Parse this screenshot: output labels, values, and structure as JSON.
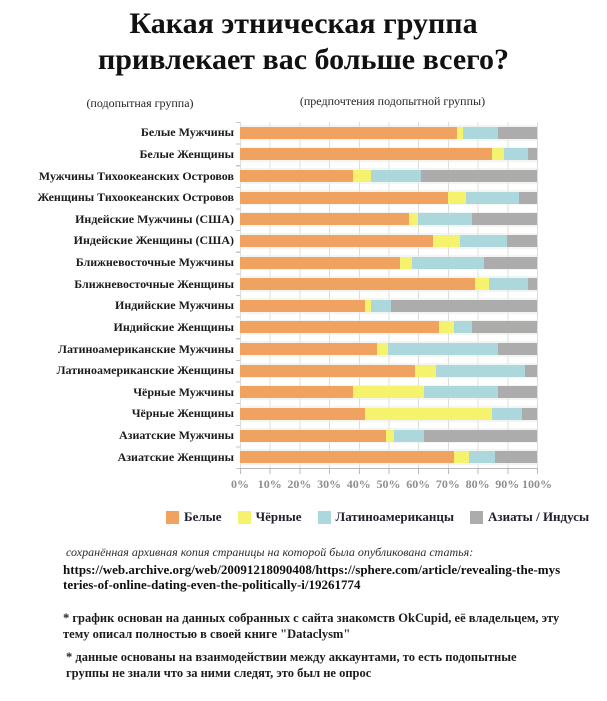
{
  "title": {
    "line1": "Какая этническая группа",
    "line2": "привлекает вас больше всего?"
  },
  "subtitles": {
    "left": "(подопытная группа)",
    "right": "(предпочтения подопытной группы)"
  },
  "chart_data": {
    "type": "bar",
    "stacked": true,
    "orientation": "horizontal",
    "grid": true,
    "xlim": [
      0,
      100
    ],
    "x_ticks": [
      "0%",
      "10%",
      "20%",
      "30%",
      "40%",
      "50%",
      "60%",
      "70%",
      "80%",
      "90%",
      "100%"
    ],
    "categories": [
      "Белые Мужчины",
      "Белые Женщины",
      "Мужчины Тихоокеанских Островов",
      "Женщины Тихоокеанских Островов",
      "Индейские Мужчины (США)",
      "Индейские Женщины (США)",
      "Ближневосточные Мужчины",
      "Ближневосточные Женщины",
      "Индийские Мужчины",
      "Индийские Женщины",
      "Латиноамериканские Мужчины",
      "Латиноамериканские Женщины",
      "Чёрные Мужчины",
      "Чёрные Женщины",
      "Азиатские Мужчины",
      "Азиатские Женщины"
    ],
    "series": [
      {
        "name": "Белые",
        "color": "#F0A261",
        "values": [
          73,
          85,
          38,
          70,
          57,
          65,
          54,
          79,
          42,
          67,
          46,
          59,
          38,
          42,
          49,
          72
        ]
      },
      {
        "name": "Чёрные",
        "color": "#F5F36E",
        "values": [
          2,
          4,
          6,
          6,
          3,
          9,
          4,
          5,
          2,
          5,
          4,
          7,
          24,
          43,
          3,
          5
        ]
      },
      {
        "name": "Латиноамериканцы",
        "color": "#ABD7DD",
        "values": [
          12,
          8,
          17,
          18,
          18,
          16,
          24,
          13,
          7,
          6,
          37,
          30,
          25,
          10,
          10,
          9
        ]
      },
      {
        "name": "Азиаты / Индусы",
        "color": "#ACACAC",
        "values": [
          13,
          3,
          39,
          6,
          22,
          10,
          18,
          3,
          49,
          22,
          13,
          4,
          13,
          5,
          38,
          14
        ]
      }
    ]
  },
  "legend": [
    {
      "label": "Белые",
      "color": "#F0A261"
    },
    {
      "label": "Чёрные",
      "color": "#F5F36E"
    },
    {
      "label": "Латиноамериканцы",
      "color": "#ABD7DD"
    },
    {
      "label": "Азиаты / Индусы",
      "color": "#ACACAC"
    }
  ],
  "notes": {
    "archive_label": "сохранённая архивная копия страницы на которой была опубликована статья:",
    "archive_url": "https://web.archive.org/web/20091218090408/https://sphere.com/article/revealing-the-mysteries-of-online-dating-even-the-politically-i/19261774",
    "footnote1": "* график основан на данных собранных с сайта знакомств OkCupid, её владельцем, эту тему описал полностью в своей книге \"Dataclysm\"",
    "footnote2": "* данные основаны на взаимодействии между аккаунтами, то есть подопытные группы не знали что за ними следят, это был не опрос"
  }
}
